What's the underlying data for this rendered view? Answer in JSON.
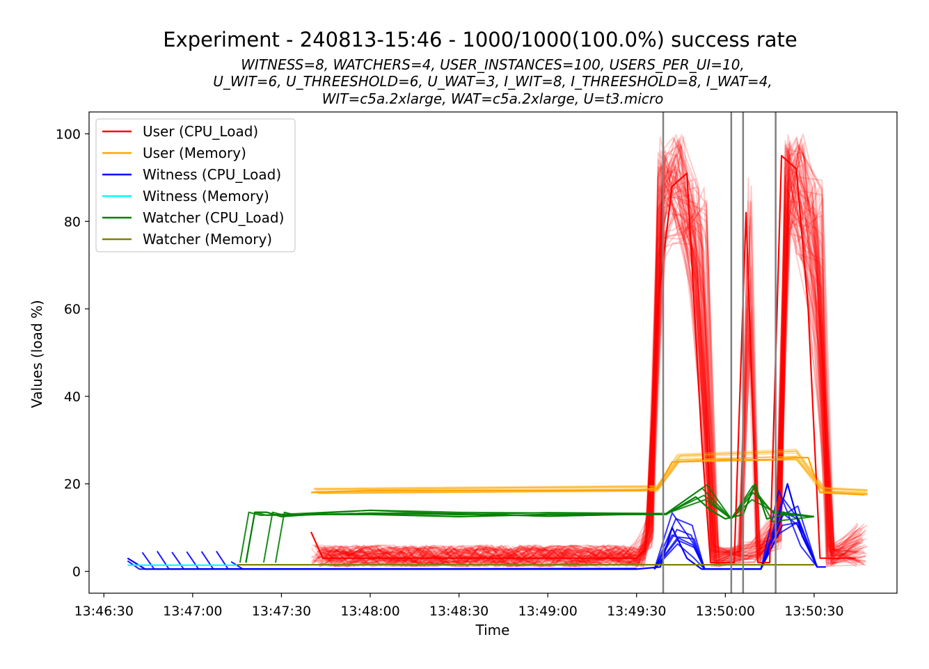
{
  "chart_data": {
    "type": "line",
    "title": "Experiment - 240813-15:46 - 1000/1000(100.0%) success rate",
    "subtitle_lines": [
      "WITNESS=8, WATCHERS=4, USER_INSTANCES=100, USERS_PER_UI=10,",
      "U_WIT=6, U_THREESHOLD=6, U_WAT=3, I_WIT=8, I_THREESHOLD=8, I_WAT=4,",
      "WIT=c5a.2xlarge, WAT=c5a.2xlarge, U=t3.micro"
    ],
    "xlabel": "Time",
    "ylabel": "Values (load %)",
    "xlim": [
      "13:46:25",
      "13:50:58"
    ],
    "ylim": [
      -5,
      105
    ],
    "x_ticks": [
      "13:46:30",
      "13:47:00",
      "13:47:30",
      "13:48:00",
      "13:48:30",
      "13:49:00",
      "13:49:30",
      "13:50:00",
      "13:50:30"
    ],
    "y_ticks": [
      0,
      20,
      40,
      60,
      80,
      100
    ],
    "grid": false,
    "legend_position": "upper-left",
    "vertical_markers": [
      "13:49:39",
      "13:50:02",
      "13:50:06",
      "13:50:17"
    ],
    "colors": {
      "user_cpu": "#ff0000",
      "user_mem": "#ffa500",
      "witness_cpu": "#0000ff",
      "witness_mem": "#00ffff",
      "watcher_cpu": "#008000",
      "watcher_mem": "#808000",
      "marker": "#808080"
    },
    "legend": [
      {
        "name": "User (CPU_Load)",
        "color": "#ff0000"
      },
      {
        "name": "User (Memory)",
        "color": "#ffa500"
      },
      {
        "name": "Witness (CPU_Load)",
        "color": "#0000ff"
      },
      {
        "name": "Witness (Memory)",
        "color": "#00ffff"
      },
      {
        "name": "Watcher (CPU_Load)",
        "color": "#008000"
      },
      {
        "name": "Watcher (Memory)",
        "color": "#808000"
      }
    ],
    "series": [
      {
        "name": "User (CPU_Load)",
        "color": "#ff0000",
        "points": [
          [
            "13:47:40",
            9
          ],
          [
            "13:47:44",
            3
          ],
          [
            "13:48:00",
            3
          ],
          [
            "13:48:30",
            3
          ],
          [
            "13:49:00",
            3
          ],
          [
            "13:49:30",
            3
          ],
          [
            "13:49:33",
            5
          ],
          [
            "13:49:37",
            60
          ],
          [
            "13:49:42",
            88
          ],
          [
            "13:49:47",
            91
          ],
          [
            "13:49:52",
            30
          ],
          [
            "13:49:55",
            2
          ],
          [
            "13:50:03",
            2
          ],
          [
            "13:50:07",
            82
          ],
          [
            "13:50:11",
            2
          ],
          [
            "13:50:15",
            2
          ],
          [
            "13:50:19",
            95
          ],
          [
            "13:50:24",
            92
          ],
          [
            "13:50:28",
            60
          ],
          [
            "13:50:32",
            3
          ],
          [
            "13:50:44",
            3
          ]
        ]
      },
      {
        "name": "User (Memory)",
        "color": "#ffa500",
        "points": [
          [
            "13:47:40",
            18
          ],
          [
            "13:48:00",
            18.5
          ],
          [
            "13:48:30",
            18.5
          ],
          [
            "13:49:00",
            18.5
          ],
          [
            "13:49:30",
            18.5
          ],
          [
            "13:49:37",
            19
          ],
          [
            "13:49:42",
            25
          ],
          [
            "13:50:00",
            25.5
          ],
          [
            "13:50:15",
            25.5
          ],
          [
            "13:50:24",
            26
          ],
          [
            "13:50:28",
            26
          ],
          [
            "13:50:32",
            18
          ],
          [
            "13:50:47",
            17.5
          ]
        ]
      },
      {
        "name": "Witness (CPU_Load)",
        "color": "#0000ff",
        "points": [
          [
            "13:46:38",
            3
          ],
          [
            "13:46:44",
            0.5
          ],
          [
            "13:47:00",
            0.5
          ],
          [
            "13:47:30",
            0.5
          ],
          [
            "13:48:00",
            0.5
          ],
          [
            "13:48:30",
            0.5
          ],
          [
            "13:49:00",
            0.5
          ],
          [
            "13:49:30",
            0.5
          ],
          [
            "13:49:38",
            1
          ],
          [
            "13:49:42",
            10
          ],
          [
            "13:49:47",
            3
          ],
          [
            "13:49:52",
            0.5
          ],
          [
            "13:50:12",
            0.5
          ],
          [
            "13:50:17",
            10
          ],
          [
            "13:50:21",
            20
          ],
          [
            "13:50:26",
            8
          ],
          [
            "13:50:31",
            1
          ],
          [
            "13:50:34",
            1
          ]
        ]
      },
      {
        "name": "Witness (Memory)",
        "color": "#00ffff",
        "points": [
          [
            "13:46:38",
            1.4
          ],
          [
            "13:47:00",
            1.4
          ],
          [
            "13:47:15",
            1.4
          ]
        ]
      },
      {
        "name": "Watcher (CPU_Load)",
        "color": "#008000",
        "points": [
          [
            "13:47:18",
            2
          ],
          [
            "13:47:21",
            13.5
          ],
          [
            "13:47:25",
            13.5
          ],
          [
            "13:47:30",
            12.5
          ],
          [
            "13:47:40",
            13
          ],
          [
            "13:48:00",
            13
          ],
          [
            "13:48:30",
            12.5
          ],
          [
            "13:49:00",
            13
          ],
          [
            "13:49:30",
            13
          ],
          [
            "13:49:40",
            13
          ],
          [
            "13:49:50",
            17
          ],
          [
            "13:49:55",
            14
          ],
          [
            "13:50:00",
            12
          ],
          [
            "13:50:06",
            13
          ],
          [
            "13:50:10",
            20
          ],
          [
            "13:50:14",
            12
          ],
          [
            "13:50:20",
            13
          ],
          [
            "13:50:30",
            12.5
          ]
        ]
      },
      {
        "name": "Watcher (Memory)",
        "color": "#808000",
        "points": [
          [
            "13:47:15",
            1.5
          ],
          [
            "13:48:00",
            1.5
          ],
          [
            "13:48:30",
            1.5
          ],
          [
            "13:49:00",
            1.5
          ],
          [
            "13:49:30",
            1.5
          ],
          [
            "13:50:00",
            1.5
          ],
          [
            "13:50:30",
            1.5
          ]
        ]
      }
    ]
  }
}
